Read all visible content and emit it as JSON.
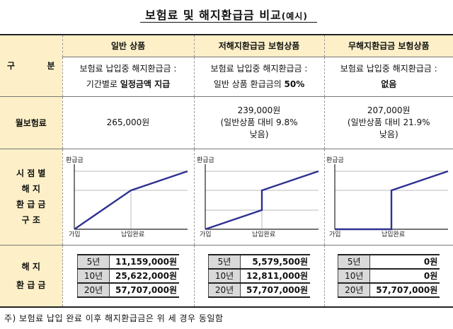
{
  "title": {
    "main": "보험료 및 해지환급금 비교",
    "suffix": "(예시)"
  },
  "columns": {
    "label": "구 분",
    "products": [
      "일반 상품",
      "저해지환급금 보험상품",
      "무해지환급금 보험상품"
    ]
  },
  "descriptions": [
    {
      "line1": "보험료 납입중 해지환급금 :",
      "line2a": "기간별로 ",
      "line2b": "일정금액 지급"
    },
    {
      "line1": "보험료 납입중 해지환급금 :",
      "line2a": "일반 상품 환급금의 ",
      "line2b": "50%"
    },
    {
      "line1": "보험료 납입중 해지환급금 :",
      "line2a": "",
      "line2b": "없음"
    }
  ],
  "premium": {
    "label": "월보험료",
    "values": [
      {
        "amount": "265,000원",
        "note1": "",
        "note2": ""
      },
      {
        "amount": "239,000원",
        "note1": "(일반상품 대비 9.8%",
        "note2": "낮음)"
      },
      {
        "amount": "207,000원",
        "note1": "(일반상품 대비 21.9%",
        "note2": "낮음)"
      }
    ]
  },
  "chart_section": {
    "label_lines": [
      "시 점 별",
      "해  지",
      "환 급 금",
      "구  조"
    ],
    "y_label": "환급금",
    "x_start": "가입",
    "x_mid": "납입완료"
  },
  "chart_data": [
    {
      "type": "line",
      "title": "일반 상품",
      "x": [
        0,
        1,
        2
      ],
      "y": [
        0,
        0.67,
        1.0
      ],
      "xlabels": [
        "가입",
        "납입완료",
        ""
      ],
      "ylabel": "환급금"
    },
    {
      "type": "line",
      "title": "저해지환급금 보험상품",
      "x": [
        0,
        1,
        1,
        2
      ],
      "y": [
        0,
        0.33,
        0.67,
        1.0
      ],
      "xlabels": [
        "가입",
        "납입완료",
        ""
      ],
      "ylabel": "환급금"
    },
    {
      "type": "line",
      "title": "무해지환급금 보험상품",
      "x": [
        0,
        1,
        1,
        2
      ],
      "y": [
        0,
        0,
        0.67,
        1.0
      ],
      "xlabels": [
        "가입",
        "납입완료",
        ""
      ],
      "ylabel": "환급금"
    }
  ],
  "refund": {
    "label_lines": [
      "해  지",
      "환 급 금"
    ],
    "tables": [
      [
        {
          "year": "5년",
          "value": "11,159,000원"
        },
        {
          "year": "10년",
          "value": "25,622,000원"
        },
        {
          "year": "20년",
          "value": "57,707,000원"
        }
      ],
      [
        {
          "year": "5년",
          "value": "5,579,500원"
        },
        {
          "year": "10년",
          "value": "12,811,000원"
        },
        {
          "year": "20년",
          "value": "57,707,000원"
        }
      ],
      [
        {
          "year": "5년",
          "value": "0원"
        },
        {
          "year": "10년",
          "value": "0원"
        },
        {
          "year": "20년",
          "value": "57,707,000원"
        }
      ]
    ]
  },
  "footnote": "주) 보험료 납입 완료 이후 해지환급금은 위 세 경우 동일함",
  "colors": {
    "header_bg": "#fdf0c8",
    "line": "#2e3192",
    "year_bg": "#d9d9d9"
  }
}
